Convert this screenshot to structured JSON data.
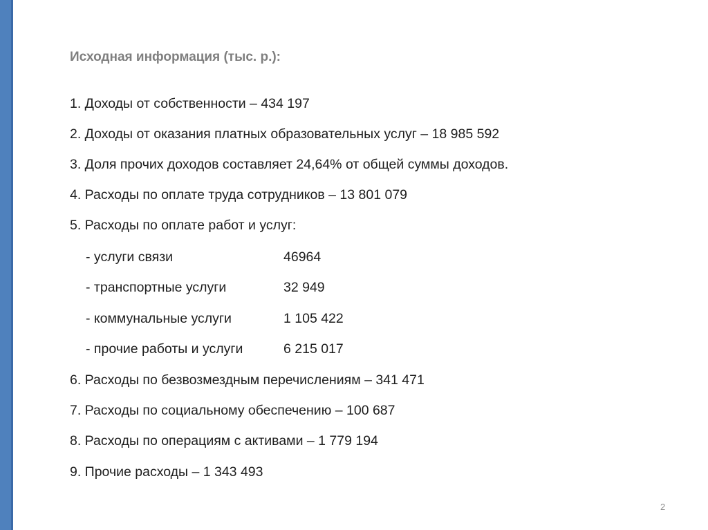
{
  "slide": {
    "accent_color": "#4f81bd",
    "title": "Исходная информация (тыс. р.):",
    "items": [
      "1. Доходы от собственности – 434 197",
      "2. Доходы от оказания платных образовательных услуг – 18 985 592",
      "3. Доля прочих доходов составляет 24,64% от общей суммы доходов.",
      "4. Расходы по оплате труда сотрудников – 13 801 079",
      "5. Расходы по оплате работ и услуг:"
    ],
    "subitems": [
      {
        "label": "- услуги связи",
        "value": "46964"
      },
      {
        "label": "- транспортные услуги",
        "value": "32 949"
      },
      {
        "label": "- коммунальные услуги",
        "value": "1 105 422"
      },
      {
        "label": "- прочие работы и услуги",
        "value": "6 215 017"
      }
    ],
    "items2": [
      "6. Расходы по безвозмездным перечислениям – 341 471",
      "7. Расходы по социальному обеспечению – 100 687",
      "8. Расходы по операциям с активами – 1 779 194",
      "9. Прочие расходы – 1 343 493"
    ],
    "page_number": "2"
  }
}
